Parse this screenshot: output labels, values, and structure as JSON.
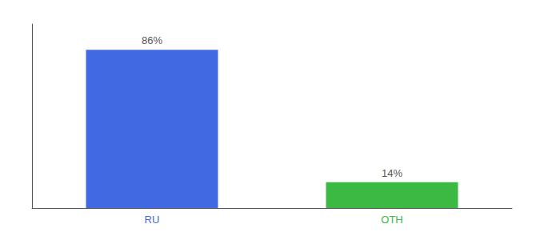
{
  "chart_data": {
    "type": "bar",
    "categories": [
      "RU",
      "OTH"
    ],
    "values": [
      86,
      14
    ],
    "value_labels": [
      "86%",
      "14%"
    ],
    "colors": [
      "#4169E1",
      "#3CB943"
    ],
    "ylim": [
      0,
      100
    ],
    "data_labels": true,
    "tick_labels": "x",
    "grid": false
  }
}
